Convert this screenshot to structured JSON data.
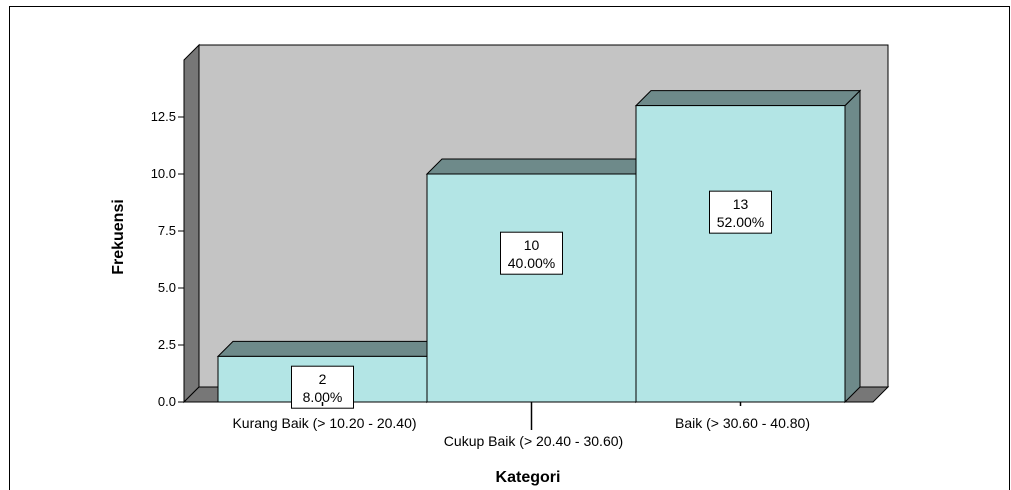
{
  "chart_data": {
    "type": "bar",
    "categories": [
      "Kurang Baik (> 10.20 - 20.40)",
      "Cukup Baik (> 20.40 - 30.60)",
      "Baik (> 30.60 - 40.80)"
    ],
    "values": [
      2,
      10,
      13
    ],
    "percent_labels": [
      "8.00%",
      "40.00%",
      "52.00%"
    ],
    "title": "",
    "xlabel": "Kategori",
    "ylabel": "Frekuensi",
    "ylim": [
      0,
      15
    ],
    "yticks": [
      "0.0",
      "2.5",
      "5.0",
      "7.5",
      "10.0",
      "12.5"
    ],
    "grid": false,
    "legend": "none",
    "colors": {
      "bar_front": "#b3e5e5",
      "bar_top": "#6e8a8a",
      "bar_side": "#6e8a8a",
      "back_wall": "#c4c4c4",
      "side_wall": "#777777",
      "floor": "#777777"
    }
  }
}
